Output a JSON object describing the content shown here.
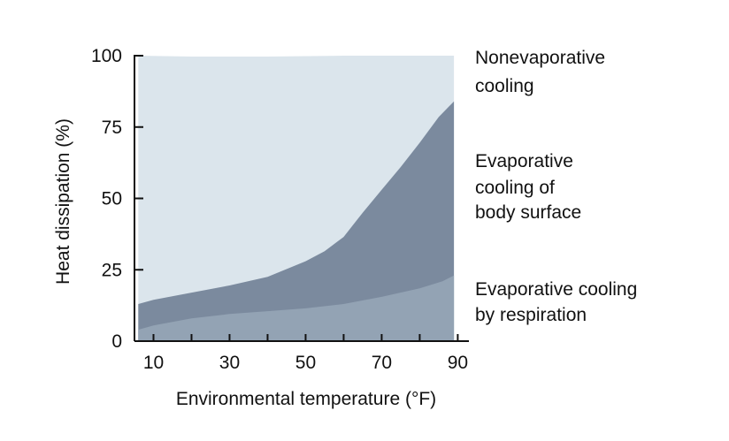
{
  "chart_data": {
    "type": "area",
    "xlabel": "Environmental temperature (°F)",
    "ylabel": "Heat dissipation (%)",
    "xlim": [
      5,
      92
    ],
    "ylim": [
      0,
      100
    ],
    "x_ticks": [
      10,
      30,
      50,
      70,
      90
    ],
    "y_ticks": [
      0,
      25,
      50,
      75,
      100
    ],
    "x_minor_ticks": [
      20,
      40,
      60,
      80
    ],
    "series": [
      {
        "name": "Evaporative cooling by respiration",
        "color": "#93a3b4",
        "points": [
          [
            6,
            4
          ],
          [
            10,
            5.5
          ],
          [
            20,
            8
          ],
          [
            30,
            9.5
          ],
          [
            40,
            10.5
          ],
          [
            50,
            11.5
          ],
          [
            60,
            13
          ],
          [
            70,
            15.5
          ],
          [
            80,
            18.5
          ],
          [
            86,
            21
          ],
          [
            89,
            23
          ]
        ]
      },
      {
        "name": "Evaporative cooling of body surface",
        "color": "#7b8a9e",
        "points": [
          [
            6,
            13
          ],
          [
            10,
            14.5
          ],
          [
            20,
            17
          ],
          [
            30,
            19.5
          ],
          [
            40,
            22.5
          ],
          [
            50,
            28
          ],
          [
            55,
            31.5
          ],
          [
            60,
            36.5
          ],
          [
            65,
            45
          ],
          [
            70,
            53
          ],
          [
            75,
            61
          ],
          [
            80,
            69.5
          ],
          [
            85,
            78.5
          ],
          [
            89,
            84
          ]
        ]
      },
      {
        "name": "Nonevaporative cooling",
        "color": "#dbe5ec",
        "points": [
          [
            6,
            100
          ],
          [
            20,
            99.7
          ],
          [
            40,
            99.7
          ],
          [
            60,
            100
          ],
          [
            80,
            100
          ],
          [
            89,
            100
          ]
        ]
      }
    ],
    "region_labels": [
      {
        "id": "nonevaporative",
        "text": "Nonevaporative cooling",
        "lines": [
          "Nonevaporative",
          "cooling"
        ]
      },
      {
        "id": "body-surface",
        "text": "Evaporative cooling of body surface",
        "lines": [
          "Evaporative",
          "cooling of",
          "body surface"
        ]
      },
      {
        "id": "respiration",
        "text": "Evaporative cooling by respiration",
        "lines": [
          "Evaporative cooling",
          "by respiration"
        ]
      }
    ]
  }
}
